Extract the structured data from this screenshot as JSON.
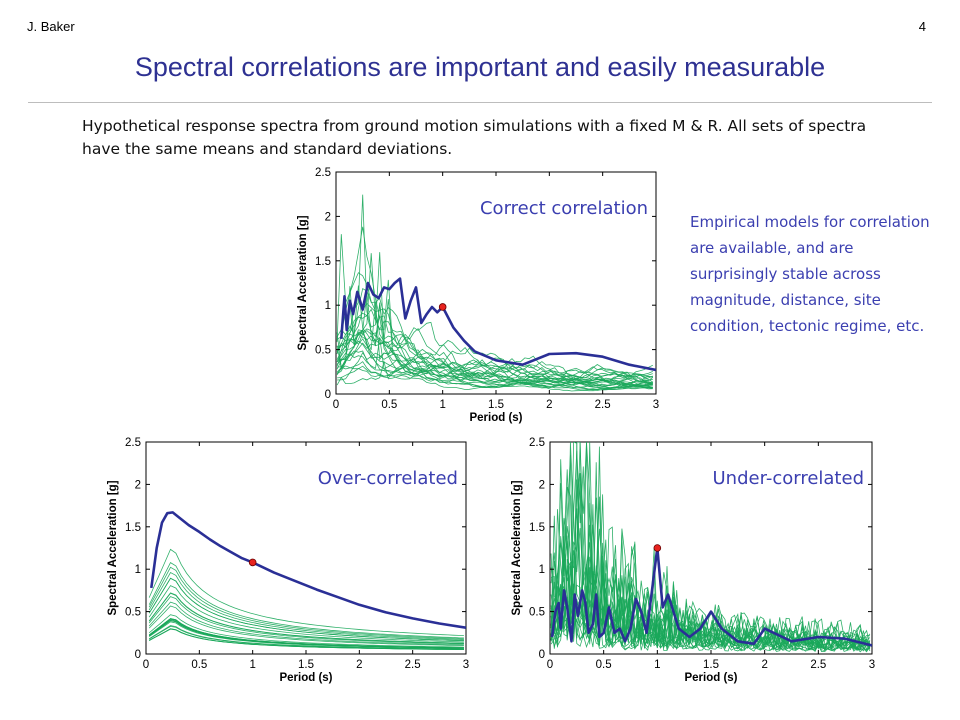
{
  "header": {
    "author": "J. Baker",
    "page_number": "4"
  },
  "slide": {
    "title": "Spectral correlations are important and easily measurable",
    "intro": "Hypothetical response spectra from ground motion simulations with a fixed M & R. All sets of spectra have the same means and standard deviations.",
    "sidenote": "Empirical models for correlation are available, and are surprisingly stable across magnitude, distance, site condition, tectonic regime, etc."
  },
  "colors": {
    "title": "#2e3192",
    "simulations": "#1aa75a",
    "highlight": "#2a2f96",
    "marker": "#e8231f",
    "annotation": "#3b3fb0"
  },
  "chart_data": [
    {
      "type": "line",
      "title": "Correct correlation",
      "xlabel": "Period (s)",
      "ylabel": "Spectral Acceleration [g]",
      "xlim": [
        0,
        3
      ],
      "ylim": [
        0,
        2.5
      ],
      "xticks": [
        "0",
        "0.5",
        "1",
        "1.5",
        "2",
        "2.5",
        "3"
      ],
      "yticks": [
        "0",
        "0.5",
        "1",
        "1.5",
        "2",
        "2.5"
      ],
      "highlight_series": {
        "x": [
          0.05,
          0.08,
          0.1,
          0.13,
          0.16,
          0.2,
          0.25,
          0.3,
          0.35,
          0.4,
          0.45,
          0.5,
          0.55,
          0.6,
          0.65,
          0.7,
          0.75,
          0.8,
          0.85,
          0.9,
          0.95,
          1.0,
          1.1,
          1.2,
          1.3,
          1.5,
          1.75,
          2.0,
          2.25,
          2.5,
          2.75,
          3.0
        ],
        "y": [
          0.62,
          1.1,
          0.72,
          1.05,
          0.9,
          1.15,
          0.95,
          1.25,
          1.12,
          1.08,
          1.2,
          1.18,
          1.25,
          1.3,
          0.85,
          1.05,
          1.2,
          0.8,
          0.9,
          0.98,
          0.92,
          0.98,
          0.75,
          0.6,
          0.48,
          0.38,
          0.33,
          0.45,
          0.46,
          0.42,
          0.33,
          0.27
        ]
      },
      "conditioning_point": {
        "x": 1.0,
        "y": 0.98
      }
    },
    {
      "type": "line",
      "title": "Over-correlated",
      "xlabel": "Period (s)",
      "ylabel": "Spectral Acceleration [g]",
      "xlim": [
        0,
        3
      ],
      "ylim": [
        0,
        2.5
      ],
      "xticks": [
        "0",
        "0.5",
        "1",
        "1.5",
        "2",
        "2.5",
        "3"
      ],
      "yticks": [
        "0",
        "0.5",
        "1",
        "1.5",
        "2",
        "2.5"
      ],
      "highlight_series": {
        "x": [
          0.05,
          0.1,
          0.15,
          0.2,
          0.25,
          0.3,
          0.4,
          0.5,
          0.6,
          0.7,
          0.8,
          0.9,
          1.0,
          1.2,
          1.4,
          1.6,
          1.8,
          2.0,
          2.25,
          2.5,
          2.75,
          3.0
        ],
        "y": [
          0.78,
          1.25,
          1.55,
          1.66,
          1.67,
          1.62,
          1.52,
          1.44,
          1.35,
          1.27,
          1.2,
          1.13,
          1.08,
          0.96,
          0.86,
          0.76,
          0.67,
          0.58,
          0.49,
          0.42,
          0.36,
          0.31
        ]
      },
      "conditioning_point": {
        "x": 1.0,
        "y": 1.08
      }
    },
    {
      "type": "line",
      "title": "Under-correlated",
      "xlabel": "Period (s)",
      "ylabel": "Spectral Acceleration [g]",
      "xlim": [
        0,
        3
      ],
      "ylim": [
        0,
        2.5
      ],
      "xticks": [
        "0",
        "0.5",
        "1",
        "1.5",
        "2",
        "2.5",
        "3"
      ],
      "yticks": [
        "0",
        "0.5",
        "1",
        "1.5",
        "2",
        "2.5"
      ],
      "highlight_series": {
        "x": [
          0.02,
          0.05,
          0.08,
          0.1,
          0.13,
          0.16,
          0.2,
          0.23,
          0.26,
          0.3,
          0.33,
          0.36,
          0.4,
          0.43,
          0.46,
          0.5,
          0.55,
          0.6,
          0.65,
          0.7,
          0.75,
          0.8,
          0.85,
          0.9,
          0.95,
          1.0,
          1.05,
          1.1,
          1.2,
          1.3,
          1.4,
          1.5,
          1.6,
          1.75,
          1.9,
          2.0,
          2.25,
          2.5,
          2.75,
          3.0
        ],
        "y": [
          0.2,
          0.5,
          0.6,
          0.3,
          0.75,
          0.55,
          0.15,
          0.7,
          0.45,
          0.75,
          0.6,
          0.25,
          0.35,
          0.7,
          0.2,
          0.25,
          0.55,
          0.25,
          0.3,
          0.15,
          0.3,
          0.65,
          0.5,
          0.25,
          0.75,
          1.25,
          0.55,
          0.7,
          0.3,
          0.2,
          0.3,
          0.5,
          0.3,
          0.15,
          0.12,
          0.3,
          0.15,
          0.2,
          0.18,
          0.1
        ]
      },
      "conditioning_point": {
        "x": 1.0,
        "y": 1.25
      }
    }
  ]
}
